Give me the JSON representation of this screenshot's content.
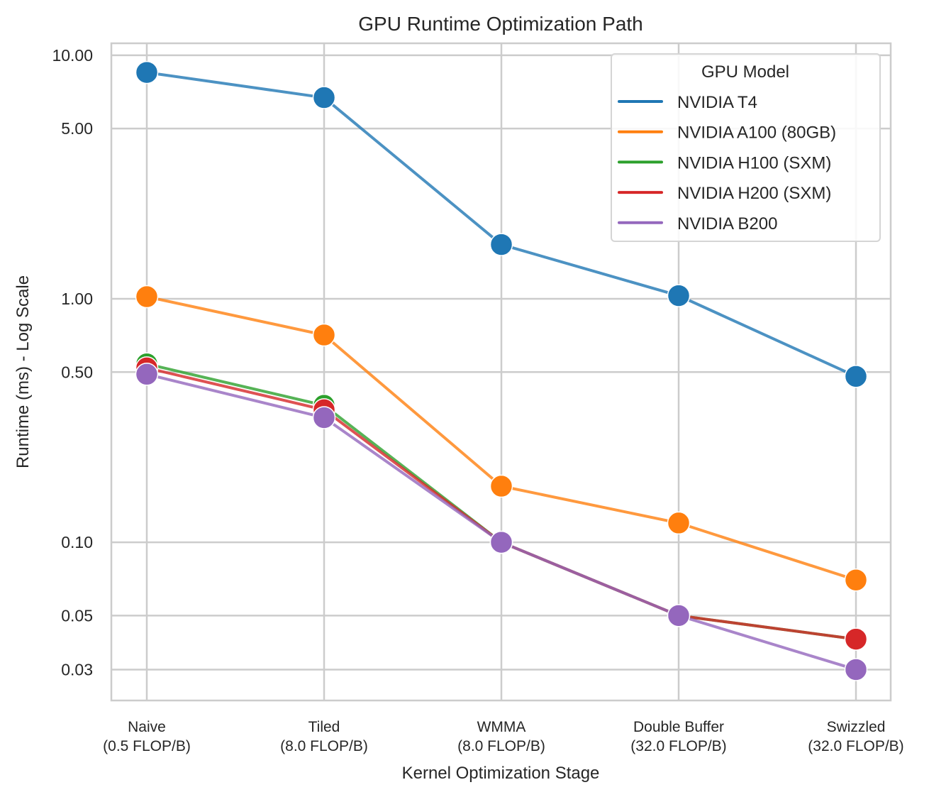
{
  "chart_data": {
    "type": "line",
    "title": "GPU Runtime Optimization Path",
    "xlabel": "Kernel Optimization Stage",
    "ylabel": "Runtime (ms) - Log Scale",
    "yscale": "log",
    "ylim": [
      0.0224,
      11.2
    ],
    "yticks": [
      10,
      5,
      1,
      0.5,
      0.1,
      0.05,
      0.03
    ],
    "ytick_labels": [
      "10.00",
      "5.00",
      "1.00",
      "0.50",
      "0.10",
      "0.05",
      "0.03"
    ],
    "categories": [
      {
        "name": "Naive",
        "detail": "(0.5 FLOP/B)"
      },
      {
        "name": "Tiled",
        "detail": "(8.0 FLOP/B)"
      },
      {
        "name": "WMMA",
        "detail": "(8.0 FLOP/B)"
      },
      {
        "name": "Double Buffer",
        "detail": "(32.0 FLOP/B)"
      },
      {
        "name": "Swizzled",
        "detail": "(32.0 FLOP/B)"
      }
    ],
    "grid": true,
    "legend": {
      "title": "GPU Model",
      "position": "top-right"
    },
    "series": [
      {
        "name": "NVIDIA T4",
        "color": "#1f77b4",
        "values": [
          8.5,
          6.7,
          1.67,
          1.03,
          0.48
        ]
      },
      {
        "name": "NVIDIA A100 (80GB)",
        "color": "#ff7f0e",
        "values": [
          1.02,
          0.71,
          0.17,
          0.12,
          0.07
        ]
      },
      {
        "name": "NVIDIA H100 (SXM)",
        "color": "#2ca02c",
        "values": [
          0.54,
          0.365,
          0.1,
          0.05,
          0.04
        ]
      },
      {
        "name": "NVIDIA H200 (SXM)",
        "color": "#d62728",
        "values": [
          0.52,
          0.35,
          0.1,
          0.05,
          0.04
        ]
      },
      {
        "name": "NVIDIA B200",
        "color": "#9467bd",
        "values": [
          0.49,
          0.325,
          0.1,
          0.05,
          0.03
        ]
      }
    ]
  }
}
